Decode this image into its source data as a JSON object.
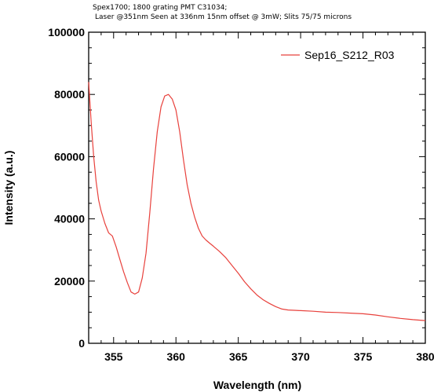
{
  "chart_data": {
    "type": "line",
    "title_lines": [
      "Spex1700; 1800 grating PMT C31034;",
      "Laser @351nm Seen at 336nm 15nm offset @ 3mW; Slits 75/75 microns"
    ],
    "xlabel": "Wavelength (nm)",
    "ylabel": "Intensity (a.u.)",
    "xlim": [
      353,
      380
    ],
    "ylim": [
      0,
      100000
    ],
    "x_ticks": [
      355,
      360,
      365,
      370,
      375,
      380
    ],
    "x_tick_labels": [
      "355",
      "360",
      "365",
      "370",
      "375",
      "380"
    ],
    "y_ticks": [
      0,
      20000,
      40000,
      60000,
      80000,
      100000
    ],
    "y_tick_labels": [
      "0",
      "20000",
      "40000",
      "60000",
      "80000",
      "100000"
    ],
    "grid": false,
    "legend": "top-right",
    "series": [
      {
        "name": "Sep16_S212_R03",
        "color": "#e8413c",
        "x": [
          353.0,
          353.2,
          353.4,
          353.6,
          353.8,
          354.0,
          354.3,
          354.6,
          354.9,
          355.2,
          355.5,
          355.8,
          356.1,
          356.4,
          356.7,
          357.0,
          357.3,
          357.6,
          357.9,
          358.2,
          358.5,
          358.8,
          359.1,
          359.4,
          359.7,
          360.0,
          360.3,
          360.6,
          360.9,
          361.2,
          361.5,
          361.8,
          362.1,
          362.4,
          362.7,
          363.0,
          363.5,
          364.0,
          364.5,
          365.0,
          365.5,
          366.0,
          366.5,
          367.0,
          367.5,
          368.0,
          368.5,
          369.0,
          369.5,
          370.0,
          371.0,
          372.0,
          373.0,
          374.0,
          375.0,
          376.0,
          377.0,
          378.0,
          379.0,
          380.0
        ],
        "y": [
          84000,
          71000,
          60000,
          52000,
          46000,
          42500,
          38500,
          35500,
          34500,
          31000,
          27000,
          23000,
          19500,
          16500,
          15800,
          16500,
          21000,
          29000,
          42000,
          56000,
          68000,
          76000,
          79500,
          80000,
          78500,
          75000,
          68000,
          59000,
          51000,
          45000,
          40500,
          37000,
          34500,
          33200,
          32200,
          31200,
          29500,
          27500,
          25000,
          22500,
          19800,
          17500,
          15500,
          14000,
          12800,
          11800,
          11000,
          10700,
          10600,
          10500,
          10300,
          10000,
          9900,
          9700,
          9500,
          9100,
          8500,
          8000,
          7600,
          7300
        ]
      }
    ]
  }
}
